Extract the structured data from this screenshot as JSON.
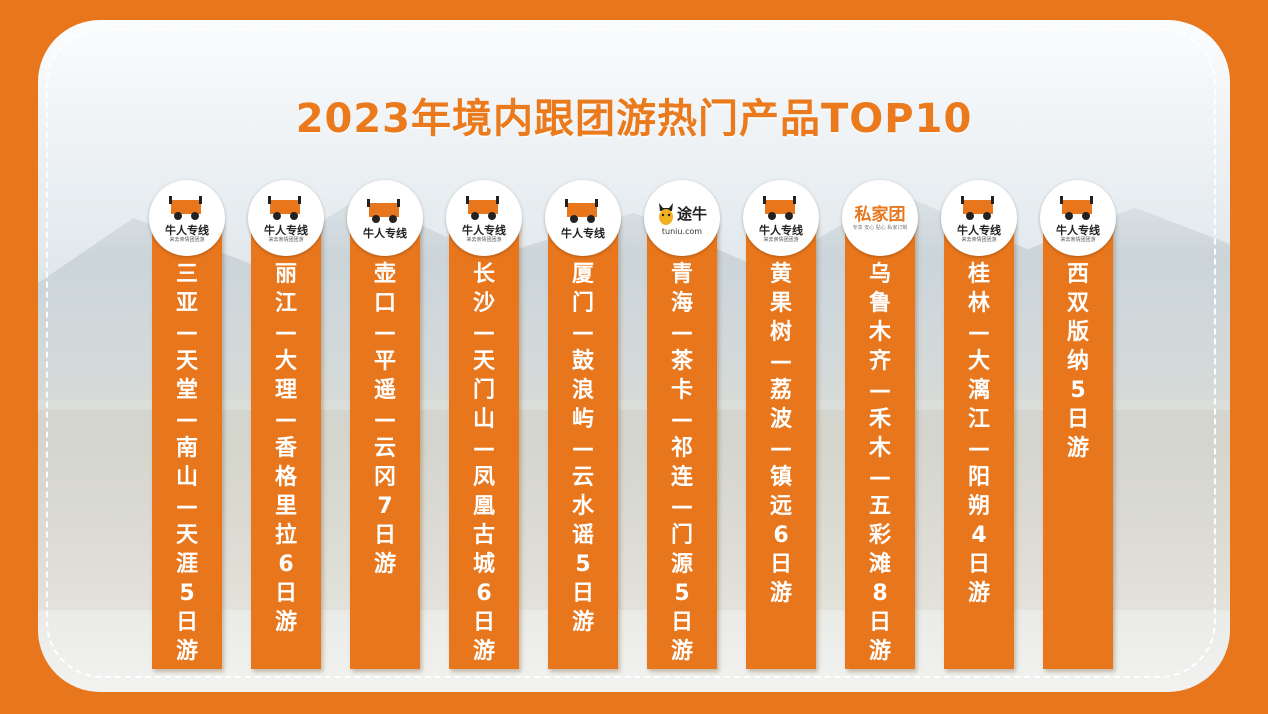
{
  "title": "2023年境内跟团游热门产品TOP10",
  "brand_color": "#e8761c",
  "items": [
    {
      "logo": "niuren",
      "logo_name": "牛人专线",
      "logo_sub": "来去亲情团团游",
      "text": "三亚—天堂—南山—天涯5日游"
    },
    {
      "logo": "niuren",
      "logo_name": "牛人专线",
      "logo_sub": "来去亲情团团游",
      "text": "丽江—大理—香格里拉6日游"
    },
    {
      "logo": "niuren",
      "logo_name": "牛人专线",
      "logo_sub": "",
      "text": "壶口—平遥—云冈7日游"
    },
    {
      "logo": "niuren",
      "logo_name": "牛人专线",
      "logo_sub": "来去亲情团团游",
      "text": "长沙—天门山—凤凰古城6日游"
    },
    {
      "logo": "niuren",
      "logo_name": "牛人专线",
      "logo_sub": "",
      "text": "厦门—鼓浪屿—云水谣5日游"
    },
    {
      "logo": "tuniu",
      "logo_name": "途牛",
      "logo_sub": "tuniu.com",
      "text": "青海—茶卡—祁连—门源5日游"
    },
    {
      "logo": "niuren",
      "logo_name": "牛人专线",
      "logo_sub": "来去亲情团团游",
      "text": "黄果树—荔波—镇远6日游"
    },
    {
      "logo": "private",
      "logo_name": "私家团",
      "logo_sub": "专享 安心 贴心 私家订制",
      "text": "乌鲁木齐—禾木—五彩滩8日游"
    },
    {
      "logo": "niuren",
      "logo_name": "牛人专线",
      "logo_sub": "来去亲情团团游",
      "text": "桂林—大漓江—阳朔4日游"
    },
    {
      "logo": "niuren",
      "logo_name": "牛人专线",
      "logo_sub": "来去亲情团团游",
      "text": "西双版纳5日游"
    }
  ]
}
